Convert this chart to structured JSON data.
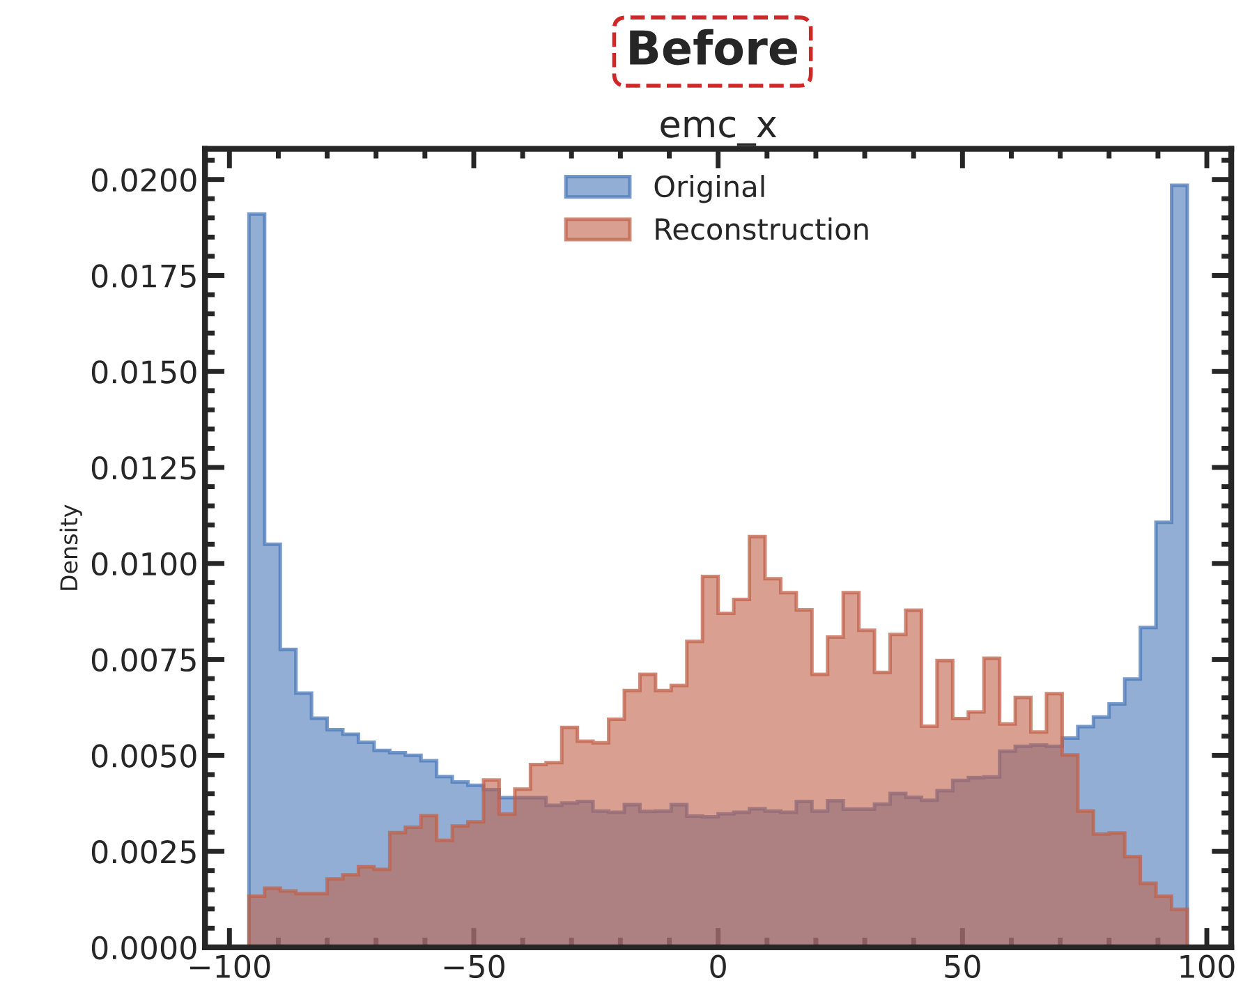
{
  "chart_data": {
    "type": "histogram",
    "title": "emc_x",
    "ylabel": "Density",
    "annotations": [
      "Before"
    ],
    "bins": [
      -96,
      -92.8,
      -89.6,
      -86.4,
      -83.2,
      -80,
      -76.8,
      -73.6,
      -70.4,
      -67.2,
      -64,
      -60.8,
      -57.6,
      -54.4,
      -51.2,
      -48,
      -44.8,
      -41.6,
      -38.4,
      -35.2,
      -32,
      -28.8,
      -25.6,
      -22.4,
      -19.2,
      -16,
      -12.8,
      -9.6,
      -6.4,
      -3.2,
      0,
      3.2,
      6.4,
      9.6,
      12.8,
      16,
      19.2,
      22.4,
      25.6,
      28.8,
      32,
      35.2,
      38.4,
      41.6,
      44.8,
      48,
      51.2,
      54.4,
      57.6,
      60.8,
      64,
      67.2,
      70.4,
      73.6,
      76.8,
      80,
      83.2,
      86.4,
      89.6,
      92.8,
      96
    ],
    "series": [
      {
        "name": "Original",
        "color": "#4a78b8",
        "values": [
          0.0191,
          0.0105,
          0.00776,
          0.00662,
          0.00597,
          0.00567,
          0.00555,
          0.00534,
          0.00513,
          0.00507,
          0.005,
          0.00486,
          0.00445,
          0.00431,
          0.00422,
          0.00411,
          0.0039,
          0.0039,
          0.0039,
          0.0037,
          0.00376,
          0.0038,
          0.00355,
          0.00352,
          0.00372,
          0.00354,
          0.00355,
          0.00372,
          0.00342,
          0.0034,
          0.00348,
          0.00352,
          0.00361,
          0.00355,
          0.00352,
          0.0038,
          0.00355,
          0.00382,
          0.0036,
          0.0036,
          0.00373,
          0.00401,
          0.00391,
          0.00383,
          0.00408,
          0.00435,
          0.00442,
          0.00444,
          0.00511,
          0.00524,
          0.00527,
          0.00524,
          0.00545,
          0.00575,
          0.006,
          0.00634,
          0.00699,
          0.00833,
          0.01107,
          0.01985
        ]
      },
      {
        "name": "Reconstruction",
        "color": "#c0604a",
        "values": [
          0.00133,
          0.00154,
          0.00147,
          0.0014,
          0.0014,
          0.00178,
          0.00189,
          0.0021,
          0.00203,
          0.00299,
          0.00313,
          0.00343,
          0.00279,
          0.00316,
          0.00327,
          0.00436,
          0.00347,
          0.00412,
          0.00476,
          0.00481,
          0.00573,
          0.00537,
          0.00533,
          0.00594,
          0.00669,
          0.00711,
          0.00669,
          0.00682,
          0.00797,
          0.00966,
          0.0087,
          0.00906,
          0.0107,
          0.0096,
          0.00924,
          0.00879,
          0.00711,
          0.00808,
          0.00924,
          0.00826,
          0.00716,
          0.00815,
          0.00878,
          0.00576,
          0.00747,
          0.00596,
          0.00613,
          0.00753,
          0.00582,
          0.00651,
          0.00561,
          0.00661,
          0.00501,
          0.00355,
          0.00295,
          0.00298,
          0.00236,
          0.00167,
          0.00133,
          0.00099
        ]
      }
    ],
    "xlim": [
      -105,
      105
    ],
    "xticks": [
      {
        "value": -100,
        "label": "−100"
      },
      {
        "value": -50,
        "label": "−50"
      },
      0,
      50,
      100
    ],
    "ylim": [
      0,
      0.0208
    ],
    "yticks": [
      {
        "value": 0,
        "label": "0.0000"
      },
      {
        "value": 0.0025,
        "label": "0.0025"
      },
      {
        "value": 0.005,
        "label": "0.0050"
      },
      {
        "value": 0.0075,
        "label": "0.0075"
      },
      {
        "value": 0.01,
        "label": "0.0100"
      },
      {
        "value": 0.0125,
        "label": "0.0125"
      },
      {
        "value": 0.015,
        "label": "0.0150"
      },
      {
        "value": 0.0175,
        "label": "0.0175"
      },
      {
        "value": 0.02,
        "label": "0.0200"
      }
    ],
    "legend": "top",
    "grid": false
  }
}
